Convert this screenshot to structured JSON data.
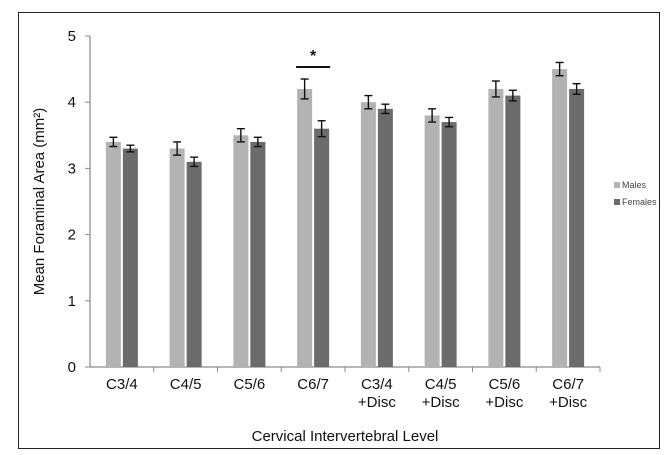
{
  "chart_data": {
    "type": "bar",
    "categories": [
      [
        "C3/4"
      ],
      [
        "C4/5"
      ],
      [
        "C5/6"
      ],
      [
        "C6/7"
      ],
      [
        "C3/4",
        "+Disc"
      ],
      [
        "C4/5",
        "+Disc"
      ],
      [
        "C5/6",
        "+Disc"
      ],
      [
        "C6/7",
        "+Disc"
      ]
    ],
    "series": [
      {
        "name": "Males",
        "color": "#b3b3b3",
        "values": [
          3.4,
          3.3,
          3.5,
          4.2,
          4.0,
          3.8,
          4.2,
          4.5
        ],
        "errors": [
          0.07,
          0.1,
          0.1,
          0.15,
          0.1,
          0.1,
          0.12,
          0.1
        ]
      },
      {
        "name": "Females",
        "color": "#6b6b6b",
        "values": [
          3.3,
          3.1,
          3.4,
          3.6,
          3.9,
          3.7,
          4.1,
          4.2
        ],
        "errors": [
          0.05,
          0.07,
          0.07,
          0.12,
          0.07,
          0.07,
          0.08,
          0.08
        ]
      }
    ],
    "xlabel": "Cervical Intervertebral Level",
    "ylabel": "Mean Foraminal Area (mm²)",
    "ylim": [
      0,
      5
    ],
    "yticks": [
      0,
      1,
      2,
      3,
      4,
      5
    ],
    "grid": false,
    "legend": "right",
    "annotations": [
      {
        "text": "*",
        "category_index": 3
      }
    ]
  }
}
